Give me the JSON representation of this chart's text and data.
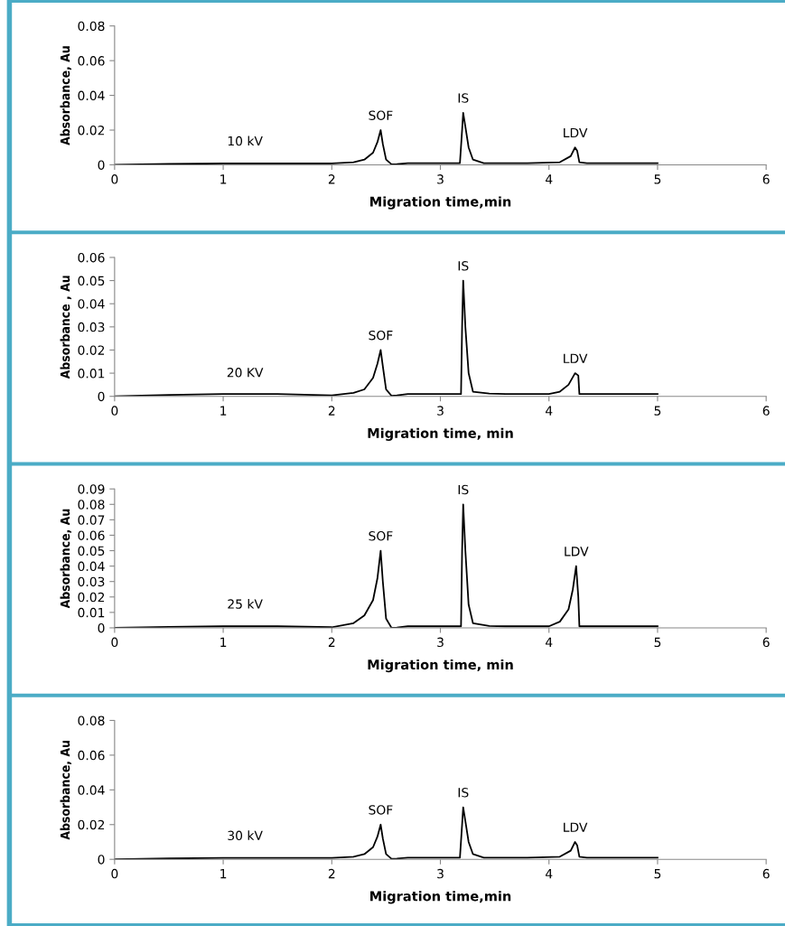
{
  "chart_data": [
    {
      "type": "line",
      "xlabel": "Migration time,min",
      "ylabel": "Absorbance, Au",
      "xlim": [
        0,
        6
      ],
      "xticks": [
        0,
        1,
        2,
        3,
        4,
        5,
        6
      ],
      "ylim": [
        0,
        0.08
      ],
      "yticks": [
        0,
        0.02,
        0.04,
        0.06,
        0.08
      ],
      "grid": false,
      "marker": "none",
      "line_style": "solid",
      "series": [
        {
          "color": "#000000",
          "x": [
            0,
            0.5,
            1,
            1.5,
            2,
            2.2,
            2.3,
            2.38,
            2.42,
            2.45,
            2.47,
            2.5,
            2.55,
            2.6,
            2.7,
            3.0,
            3.18,
            3.2,
            3.21,
            3.23,
            3.26,
            3.3,
            3.4,
            3.8,
            4.1,
            4.2,
            4.24,
            4.26,
            4.28,
            4.35,
            5
          ],
          "values": [
            0,
            0.0005,
            0.0008,
            0.0008,
            0.0008,
            0.0015,
            0.003,
            0.007,
            0.013,
            0.02,
            0.012,
            0.003,
            0.0003,
            0.0004,
            0.001,
            0.001,
            0.001,
            0.02,
            0.03,
            0.022,
            0.01,
            0.003,
            0.001,
            0.001,
            0.0015,
            0.005,
            0.01,
            0.008,
            0.0015,
            0.001,
            0.001
          ]
        }
      ],
      "annotations": [
        "10 kV",
        {
          "text": "SOF",
          "x": 2.45,
          "y": 0.02
        },
        {
          "text": "IS",
          "x": 3.21,
          "y": 0.03
        },
        {
          "text": "LDV",
          "x": 4.24,
          "y": 0.01
        }
      ]
    },
    {
      "type": "line",
      "xlabel": "Migration time, min",
      "ylabel": "Absorbance , Au",
      "xlim": [
        0,
        6
      ],
      "xticks": [
        0,
        1,
        2,
        3,
        4,
        5,
        6
      ],
      "ylim": [
        0,
        0.06
      ],
      "yticks": [
        0,
        0.01,
        0.02,
        0.03,
        0.04,
        0.05,
        0.06
      ],
      "grid": false,
      "marker": "none",
      "line_style": "solid",
      "series": [
        {
          "color": "#000000",
          "x": [
            0,
            0.5,
            1,
            1.5,
            2,
            2.2,
            2.3,
            2.38,
            2.42,
            2.45,
            2.47,
            2.5,
            2.55,
            2.6,
            2.7,
            3.0,
            3.19,
            3.2,
            3.21,
            3.23,
            3.26,
            3.3,
            3.45,
            3.6,
            4.0,
            4.1,
            4.18,
            4.24,
            4.27,
            4.28,
            4.35,
            5
          ],
          "values": [
            0,
            0.0006,
            0.001,
            0.001,
            0.0004,
            0.0015,
            0.003,
            0.008,
            0.014,
            0.02,
            0.013,
            0.003,
            0.0002,
            0.0004,
            0.001,
            0.001,
            0.001,
            0.03,
            0.05,
            0.03,
            0.01,
            0.002,
            0.0012,
            0.001,
            0.001,
            0.002,
            0.005,
            0.01,
            0.009,
            0.001,
            0.001,
            0.001
          ]
        }
      ],
      "annotations": [
        "20 KV",
        {
          "text": "SOF",
          "x": 2.45,
          "y": 0.02
        },
        {
          "text": "IS",
          "x": 3.21,
          "y": 0.05
        },
        {
          "text": "LDV",
          "x": 4.24,
          "y": 0.01
        }
      ]
    },
    {
      "type": "line",
      "xlabel": "Migration time, min",
      "ylabel": "Absorbance, Au",
      "xlim": [
        0,
        6
      ],
      "xticks": [
        0,
        1,
        2,
        3,
        4,
        5,
        6
      ],
      "ylim": [
        0,
        0.09
      ],
      "yticks": [
        0,
        0.01,
        0.02,
        0.03,
        0.04,
        0.05,
        0.06,
        0.07,
        0.08,
        0.09
      ],
      "grid": false,
      "marker": "none",
      "line_style": "solid",
      "series": [
        {
          "color": "#000000",
          "x": [
            0,
            0.5,
            1,
            1.5,
            2,
            2.2,
            2.3,
            2.38,
            2.42,
            2.45,
            2.47,
            2.5,
            2.55,
            2.6,
            2.7,
            3.0,
            3.19,
            3.2,
            3.21,
            3.23,
            3.26,
            3.3,
            3.45,
            3.6,
            4.0,
            4.1,
            4.18,
            4.22,
            4.25,
            4.27,
            4.28,
            4.35,
            5
          ],
          "values": [
            0,
            0.0006,
            0.001,
            0.001,
            0.0004,
            0.003,
            0.008,
            0.018,
            0.032,
            0.05,
            0.03,
            0.006,
            0,
            0.0002,
            0.001,
            0.001,
            0.001,
            0.05,
            0.08,
            0.05,
            0.015,
            0.003,
            0.0012,
            0.001,
            0.001,
            0.004,
            0.012,
            0.025,
            0.04,
            0.02,
            0.001,
            0.001,
            0.001
          ]
        }
      ],
      "annotations": [
        "25 kV",
        {
          "text": "SOF",
          "x": 2.45,
          "y": 0.05
        },
        {
          "text": "IS",
          "x": 3.21,
          "y": 0.08
        },
        {
          "text": "LDV",
          "x": 4.25,
          "y": 0.04
        }
      ]
    },
    {
      "type": "line",
      "xlabel": "Migration time,min",
      "ylabel": "Absorbance, Au",
      "xlim": [
        0,
        6
      ],
      "xticks": [
        0,
        1,
        2,
        3,
        4,
        5,
        6
      ],
      "ylim": [
        0,
        0.08
      ],
      "yticks": [
        0,
        0.02,
        0.04,
        0.06,
        0.08
      ],
      "grid": false,
      "marker": "none",
      "line_style": "solid",
      "series": [
        {
          "color": "#000000",
          "x": [
            0,
            0.5,
            1,
            1.5,
            2,
            2.2,
            2.3,
            2.38,
            2.42,
            2.45,
            2.47,
            2.5,
            2.55,
            2.6,
            2.7,
            3.0,
            3.18,
            3.2,
            3.21,
            3.23,
            3.26,
            3.3,
            3.4,
            3.8,
            4.1,
            4.2,
            4.24,
            4.26,
            4.28,
            4.35,
            5
          ],
          "values": [
            0,
            0.0005,
            0.0008,
            0.0008,
            0.0008,
            0.0015,
            0.003,
            0.007,
            0.013,
            0.02,
            0.012,
            0.003,
            0.0003,
            0.0004,
            0.001,
            0.001,
            0.001,
            0.02,
            0.03,
            0.022,
            0.01,
            0.003,
            0.001,
            0.001,
            0.0015,
            0.005,
            0.01,
            0.008,
            0.0015,
            0.001,
            0.001
          ]
        }
      ],
      "annotations": [
        "30 kV",
        {
          "text": "SOF",
          "x": 2.45,
          "y": 0.02
        },
        {
          "text": "IS",
          "x": 3.21,
          "y": 0.03
        },
        {
          "text": "LDV",
          "x": 4.24,
          "y": 0.01
        }
      ]
    }
  ]
}
